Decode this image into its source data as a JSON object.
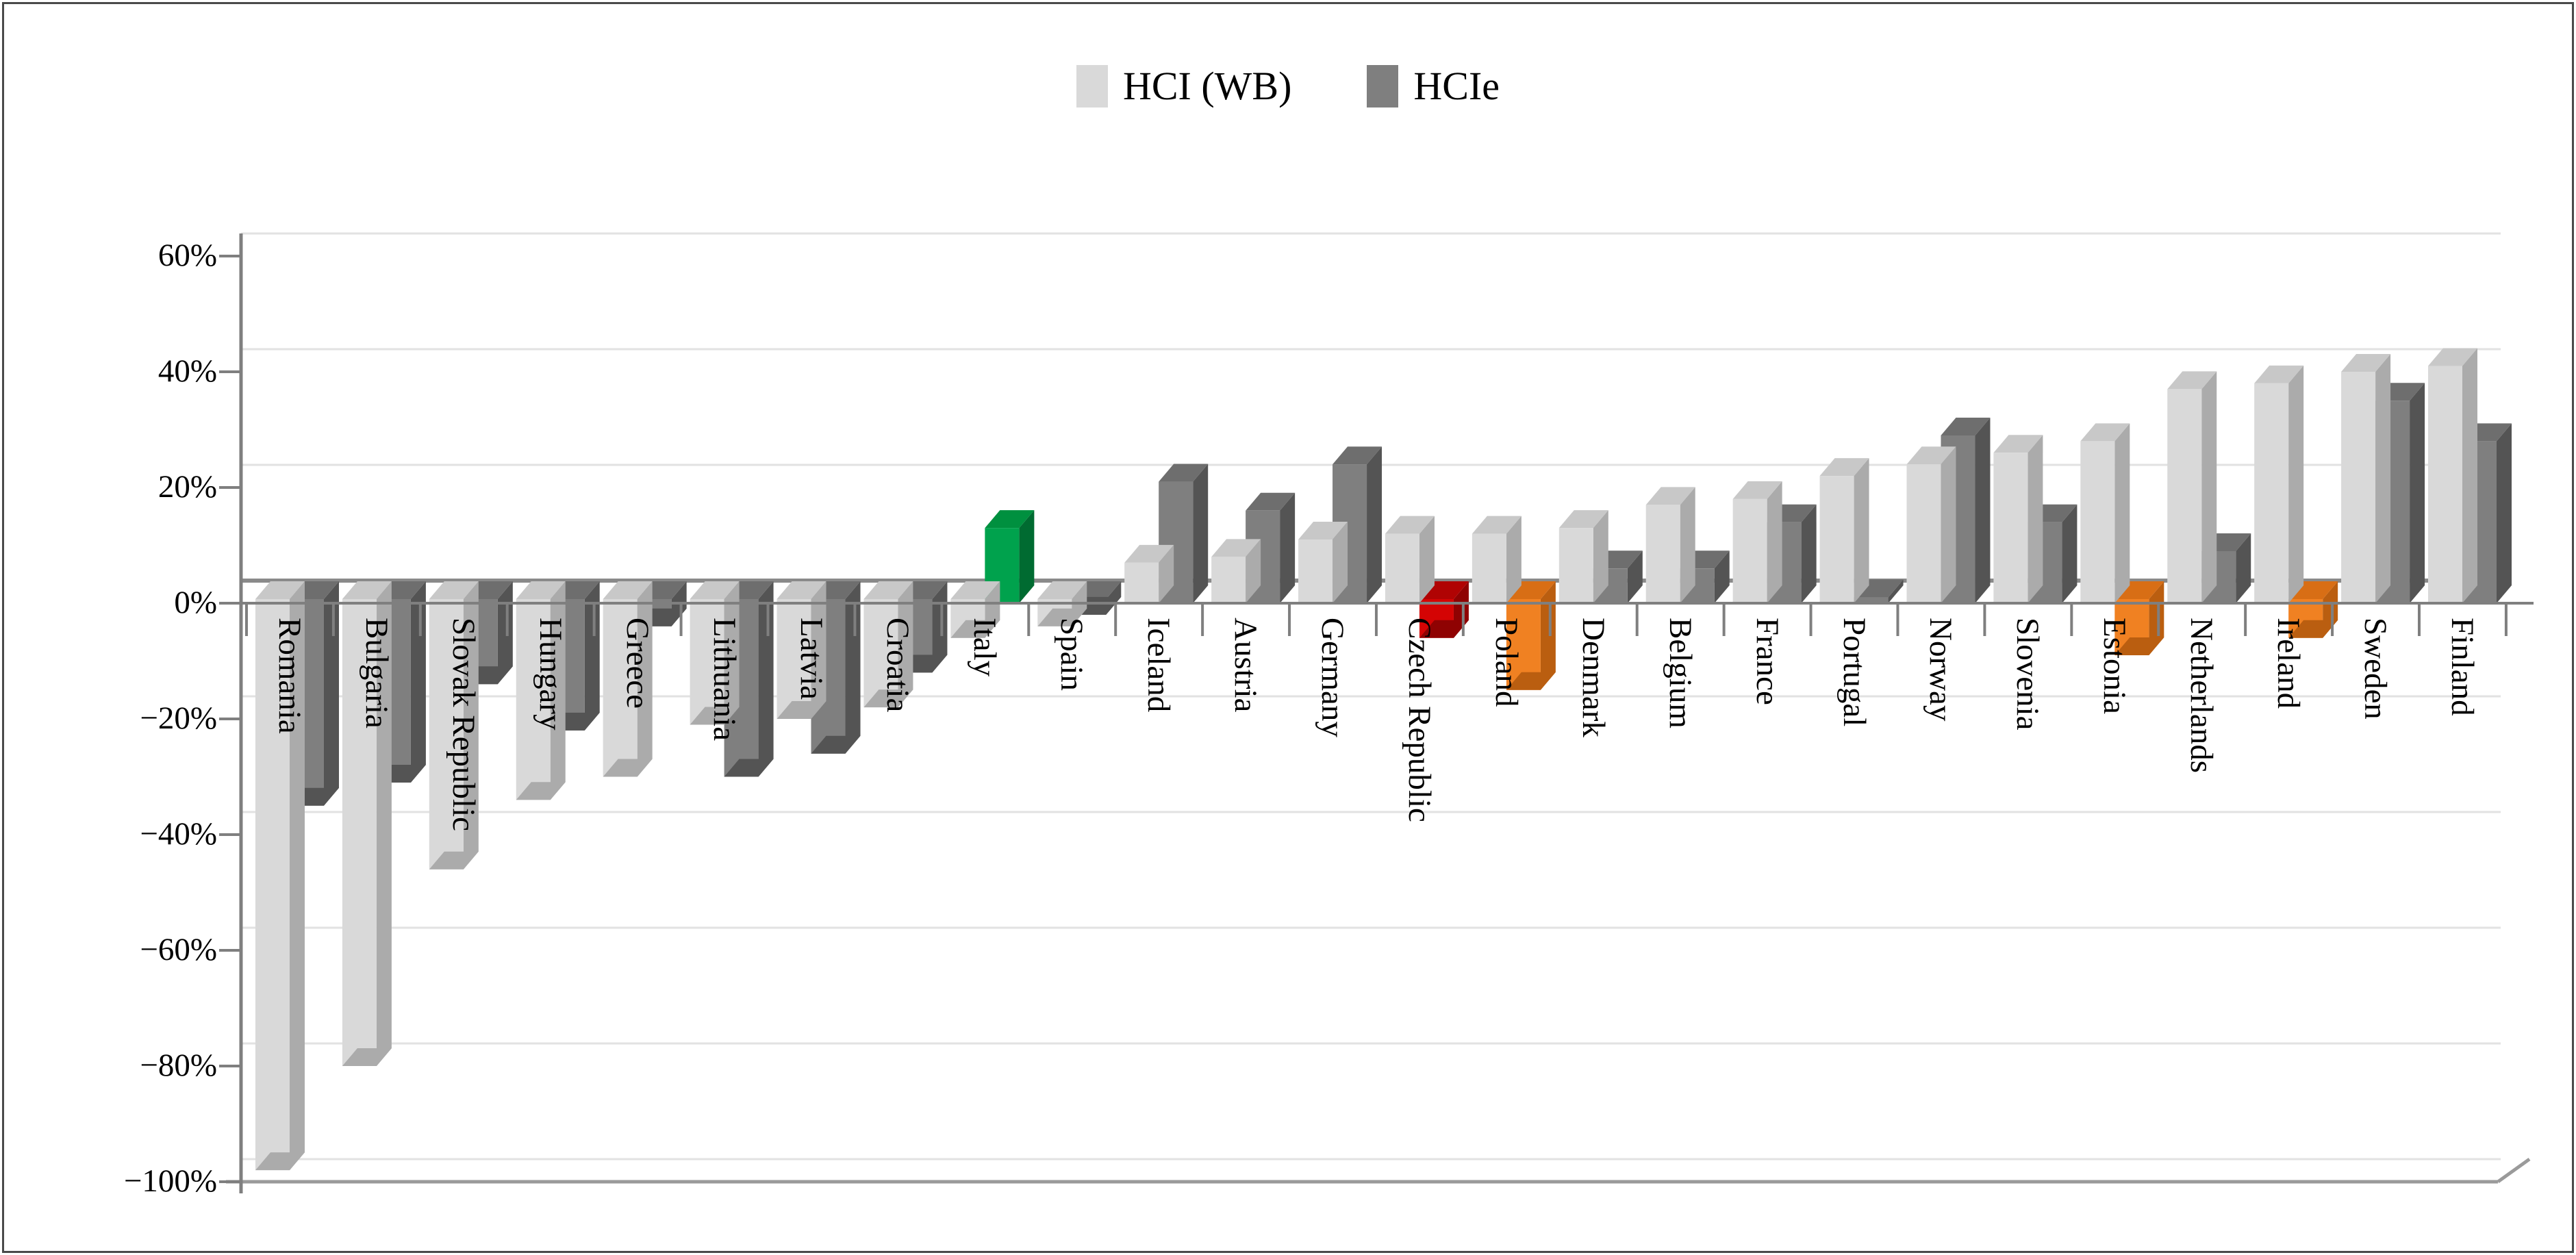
{
  "legend": [
    {
      "label": "HCI (WB)",
      "color": "#D9D9D9"
    },
    {
      "label": "HCIe",
      "color": "#7F7F7F"
    }
  ],
  "y_axis": {
    "tick_labels": [
      "60%",
      "40%",
      "20%",
      "0%",
      "−20%",
      "−40%",
      "−60%",
      "−80%",
      "−100%"
    ],
    "tick_values": [
      60,
      40,
      20,
      0,
      -20,
      -40,
      -60,
      -80,
      -100
    ]
  },
  "chart_data": {
    "type": "bar",
    "title": "",
    "xlabel": "",
    "ylabel": "",
    "ylim": [
      -100,
      60
    ],
    "ytick_step": 20,
    "grid": "horizontal",
    "legend_position": "top-center",
    "pseudo_3d": true,
    "categories": [
      "Romania",
      "Bulgaria",
      "Slovak Republic",
      "Hungary",
      "Greece",
      "Lithuania",
      "Latvia",
      "Croatia",
      "Italy",
      "Spain",
      "Iceland",
      "Austria",
      "Germany",
      "Czech Republic",
      "Poland",
      "Denmark",
      "Belgium",
      "France",
      "Portugal",
      "Norway",
      "Slovenia",
      "Estonia",
      "Netherlands",
      "Ireland",
      "Sweden",
      "Finland"
    ],
    "series": [
      {
        "name": "HCI (WB)",
        "values": [
          -98,
          -80,
          -46,
          -34,
          -30,
          -21,
          -20,
          -18,
          -6,
          -4,
          7,
          8,
          11,
          12,
          12,
          13,
          17,
          18,
          22,
          24,
          26,
          28,
          37,
          38,
          40,
          41
        ]
      },
      {
        "name": "HCIe",
        "values": [
          -35,
          -31,
          -14,
          -22,
          -4,
          -30,
          -26,
          -12,
          13,
          -2,
          21,
          16,
          24,
          -6,
          -15,
          6,
          6,
          14,
          1,
          29,
          14,
          -9,
          9,
          -6,
          35,
          28
        ]
      }
    ],
    "hcie_color_overrides": {
      "Italy": "green",
      "Czech Republic": "red",
      "Poland": "orange",
      "Estonia": "orange",
      "Ireland": "orange"
    }
  },
  "colors": {
    "light": {
      "front": "#D9D9D9",
      "side": "#ABABAB",
      "top": "#C8C8C8"
    },
    "dark": {
      "front": "#7F7F7F",
      "side": "#545454",
      "top": "#6E6E6E"
    },
    "green": {
      "front": "#00A24D",
      "side": "#006B31",
      "top": "#00903F"
    },
    "red": {
      "front": "#D40404",
      "side": "#8F0202",
      "top": "#B00303"
    },
    "orange": {
      "front": "#F08122",
      "side": "#BA5E10",
      "top": "#D86E15"
    },
    "gridline": "#E2E2E2",
    "zero_line": "#8A8A8A",
    "axis": "#7F7F7F",
    "floor": "#9A9A9A",
    "text": "#000000"
  }
}
